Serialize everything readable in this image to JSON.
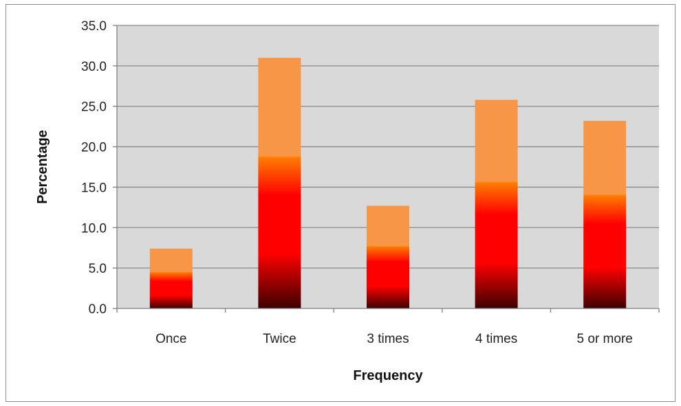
{
  "chart_data": {
    "type": "bar",
    "categories": [
      "Once",
      "Twice",
      "3 times",
      "4 times",
      "5 or more"
    ],
    "values": [
      7.4,
      31.0,
      12.7,
      25.8,
      23.2
    ],
    "xlabel": "Frequency",
    "ylabel": "Percentage",
    "ylim": [
      0,
      35
    ],
    "yticks": [
      "0.0",
      "5.0",
      "10.0",
      "15.0",
      "20.0",
      "25.0",
      "30.0",
      "35.0"
    ],
    "grid": true,
    "legend": "none",
    "colors": {
      "plot_background": "#d9d9d9",
      "gridline": "#8a8a8a",
      "bar_top": "#f79646",
      "bar_mid": "#ff7a00",
      "bar_red": "#ff0000",
      "bar_bottom": "#3d0000"
    }
  }
}
